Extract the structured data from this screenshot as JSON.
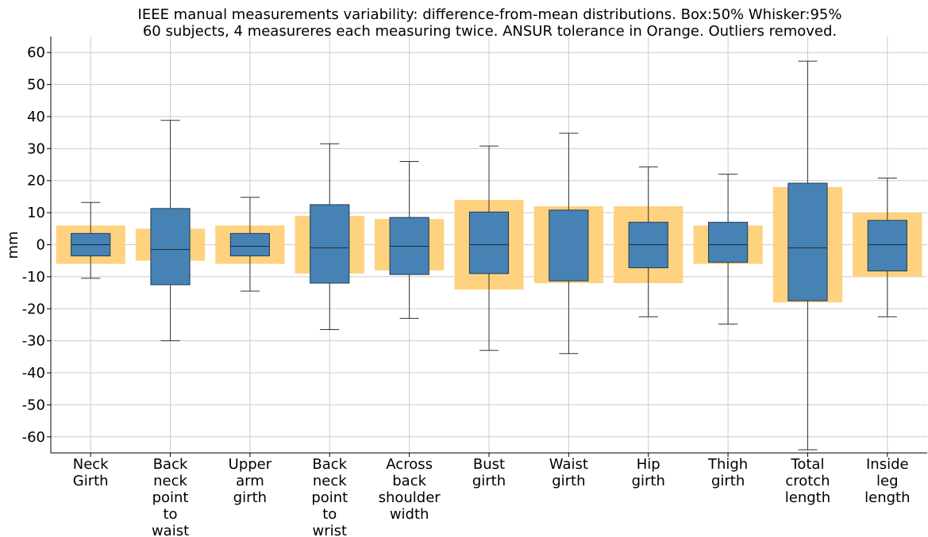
{
  "chart_data": {
    "type": "box",
    "title": [
      "IEEE manual measurements variability: difference-from-mean distributions. Box:50% Whisker:95%",
      "60 subjects, 4 measureres each measuring twice. ANSUR tolerance in Orange. Outliers removed."
    ],
    "ylabel": "mm",
    "ylim": [
      -65,
      65
    ],
    "yticks": [
      -60,
      -50,
      -40,
      -30,
      -20,
      -10,
      0,
      10,
      20,
      30,
      40,
      50,
      60
    ],
    "grid": true,
    "colors": {
      "box": "#4682b4",
      "tolerance": "#ffd280",
      "grid": "#cccccc",
      "line": "#333333"
    },
    "categories": [
      [
        "Neck",
        "Girth"
      ],
      [
        "Back",
        "neck",
        "point",
        "to",
        "waist"
      ],
      [
        "Upper",
        "arm",
        "girth"
      ],
      [
        "Back",
        "neck",
        "point",
        "to",
        "wrist"
      ],
      [
        "Across",
        "back",
        "shoulder",
        "width"
      ],
      [
        "Bust",
        "girth"
      ],
      [
        "Waist",
        "girth"
      ],
      [
        "Hip",
        "girth"
      ],
      [
        "Thigh",
        "girth"
      ],
      [
        "Total",
        "crotch",
        "length"
      ],
      [
        "Inside",
        "leg",
        "length"
      ]
    ],
    "series": [
      {
        "values": [
          {
            "whisker_low": -10.5,
            "q1": -3.5,
            "median": 0,
            "q3": 3.5,
            "whisker_high": 13.2,
            "tolerance": 6
          },
          {
            "whisker_low": -30,
            "q1": -12.5,
            "median": -1.5,
            "q3": 11.3,
            "whisker_high": 38.8,
            "tolerance": 5
          },
          {
            "whisker_low": -14.5,
            "q1": -3.5,
            "median": -0.5,
            "q3": 3.5,
            "whisker_high": 14.8,
            "tolerance": 6
          },
          {
            "whisker_low": -26.5,
            "q1": -12,
            "median": -1,
            "q3": 12.5,
            "whisker_high": 31.5,
            "tolerance": 9
          },
          {
            "whisker_low": -23,
            "q1": -9.3,
            "median": -0.5,
            "q3": 8.5,
            "whisker_high": 26,
            "tolerance": 8
          },
          {
            "whisker_low": -33,
            "q1": -9,
            "median": 0,
            "q3": 10.2,
            "whisker_high": 30.8,
            "tolerance": 14
          },
          {
            "whisker_low": -34,
            "q1": -11.3,
            "median": null,
            "q3": 10.8,
            "whisker_high": 34.8,
            "tolerance": 12
          },
          {
            "whisker_low": -22.5,
            "q1": -7.2,
            "median": 0,
            "q3": 7,
            "whisker_high": 24.3,
            "tolerance": 12
          },
          {
            "whisker_low": -24.8,
            "q1": -5.5,
            "median": 0,
            "q3": 7,
            "whisker_high": 22,
            "tolerance": 6
          },
          {
            "whisker_low": -64,
            "q1": -17.5,
            "median": -1,
            "q3": 19.2,
            "whisker_high": 57.3,
            "tolerance": 18
          },
          {
            "whisker_low": -22.5,
            "q1": -8.2,
            "median": 0,
            "q3": 7.6,
            "whisker_high": 20.8,
            "tolerance": 10
          }
        ]
      }
    ]
  }
}
